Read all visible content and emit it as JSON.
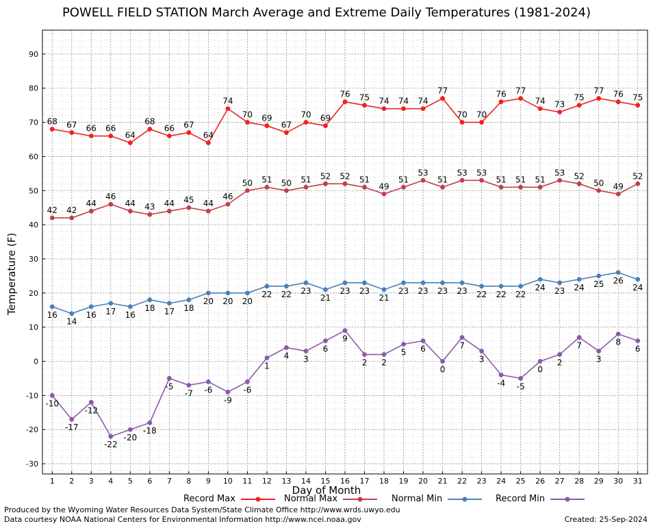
{
  "chart_data": {
    "type": "line",
    "title": "POWELL FIELD STATION March Average and Extreme Daily Temperatures (1981-2024)",
    "xlabel": "Day of Month",
    "ylabel": "Temperature (F)",
    "x": [
      1,
      2,
      3,
      4,
      5,
      6,
      7,
      8,
      9,
      10,
      11,
      12,
      13,
      14,
      15,
      16,
      17,
      18,
      19,
      20,
      21,
      22,
      23,
      24,
      25,
      26,
      27,
      28,
      29,
      30,
      31
    ],
    "yticks": [
      -30,
      -20,
      -10,
      0,
      10,
      20,
      30,
      40,
      50,
      60,
      70,
      80,
      90
    ],
    "ylim": [
      -33,
      97
    ],
    "xlim": [
      0.5,
      31.5
    ],
    "grid": true,
    "legend_placement": "bottom",
    "series": [
      {
        "name": "Record Max",
        "color": "#ee2222",
        "label_position": "above",
        "values": [
          68,
          67,
          66,
          66,
          64,
          68,
          66,
          67,
          64,
          74,
          70,
          69,
          67,
          70,
          69,
          76,
          75,
          74,
          74,
          74,
          77,
          70,
          70,
          76,
          77,
          74,
          73,
          75,
          77,
          76,
          75
        ]
      },
      {
        "name": "Normal Max",
        "color": "#c0404a",
        "label_position": "above",
        "values": [
          42,
          42,
          44,
          46,
          44,
          43,
          44,
          45,
          44,
          46,
          50,
          51,
          50,
          51,
          52,
          52,
          51,
          49,
          51,
          53,
          51,
          53,
          53,
          51,
          51,
          51,
          53,
          52,
          50,
          49,
          52
        ]
      },
      {
        "name": "Normal Min",
        "color": "#4a7fb8",
        "label_position": "below",
        "values": [
          16,
          14,
          16,
          17,
          16,
          18,
          17,
          18,
          20,
          20,
          20,
          22,
          22,
          23,
          21,
          23,
          23,
          21,
          23,
          23,
          23,
          23,
          22,
          22,
          22,
          24,
          23,
          24,
          25,
          26,
          24
        ]
      },
      {
        "name": "Record Min",
        "color": "#8a5aa8",
        "label_position": "below",
        "values": [
          -10,
          -17,
          -12,
          -22,
          -20,
          -18,
          -5,
          -7,
          -6,
          -9,
          -6,
          1,
          4,
          3,
          6,
          9,
          2,
          2,
          5,
          6,
          0,
          7,
          3,
          -4,
          -5,
          0,
          2,
          7,
          3,
          8,
          6
        ]
      }
    ]
  },
  "credits": {
    "line1": "Produced by the Wyoming Water Resources Data System/State Climate Office http://www.wrds.uwyo.edu",
    "line2": "Data courtesy NOAA National Centers for Environmental Information http://www.ncei.noaa.gov",
    "created": "Created:  25-Sep-2024"
  }
}
